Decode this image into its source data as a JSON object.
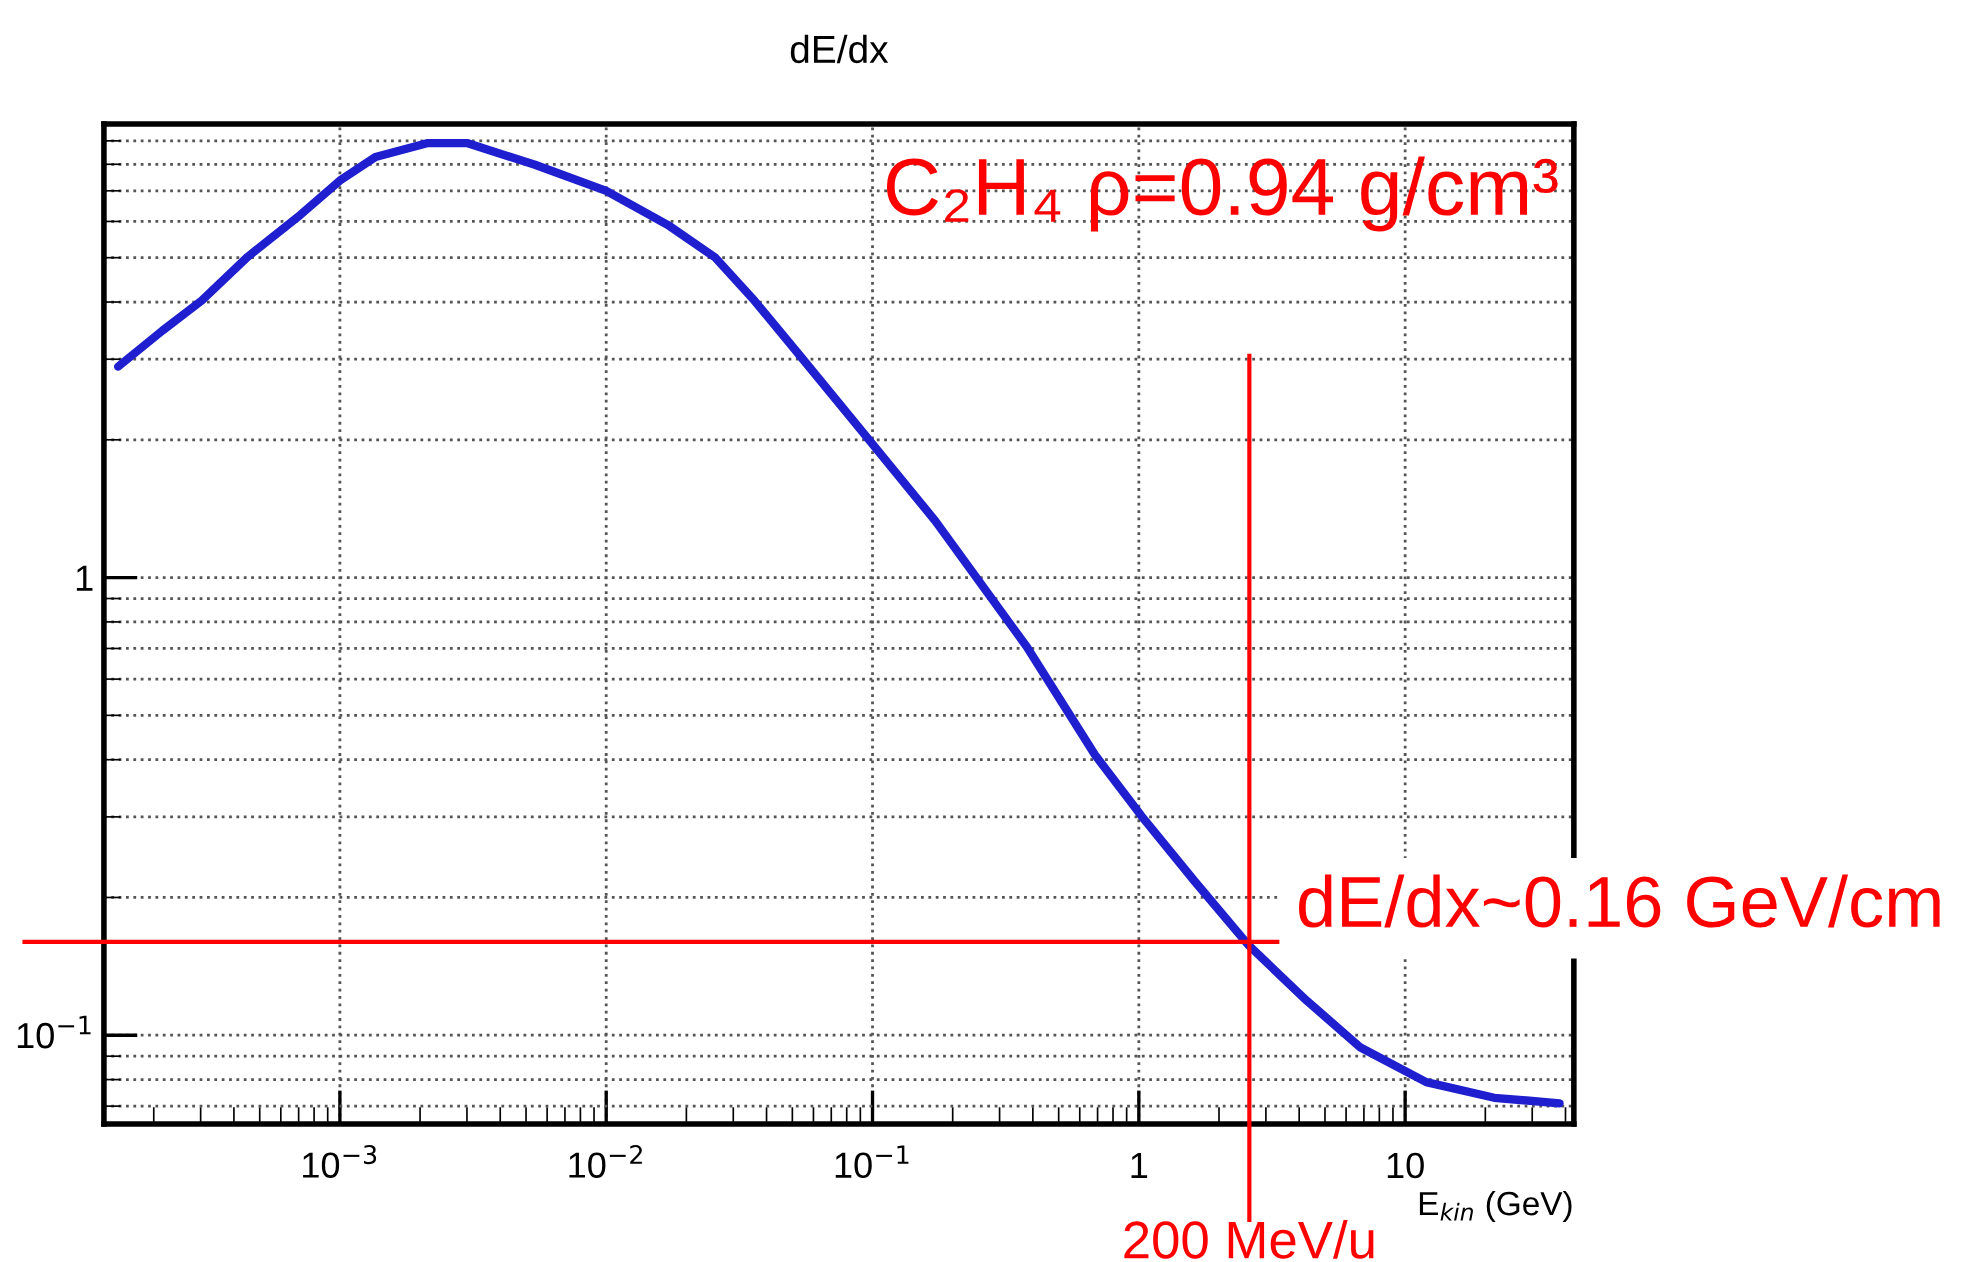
{
  "chart_data": {
    "type": "line",
    "title": "dE/dx",
    "xlabel": "E$_{kin}$ (GeV)",
    "x": [
      0.000147,
      0.000215,
      0.000303,
      0.00045,
      0.00071,
      0.001,
      0.00136,
      0.00214,
      0.003,
      0.0054,
      0.01,
      0.017,
      0.0257,
      0.036,
      0.054,
      0.095,
      0.172,
      0.38,
      0.684,
      1.02,
      1.62,
      2.59,
      4.27,
      6.8,
      12,
      21.6,
      38
    ],
    "series": [
      {
        "color": "#1f1fd0",
        "values": [
          2.89,
          3.46,
          4.03,
          5.02,
          6.2,
          7.37,
          8.3,
          8.9,
          8.9,
          7.98,
          7.0,
          5.9,
          5.0,
          4.03,
          3.03,
          2.03,
          1.33,
          0.705,
          0.41,
          0.302,
          0.217,
          0.157,
          0.119,
          0.094,
          0.079,
          0.073,
          0.071
        ]
      }
    ],
    "log": "xy",
    "xlim": [
      0.00013,
      43
    ],
    "ylim": [
      0.064,
      9.8
    ],
    "xticks": [
      {
        "value": 0.001,
        "label": "10$^{−3}$"
      },
      {
        "value": 0.01,
        "label": "10$^{−2}$"
      },
      {
        "value": 0.1,
        "label": "10$^{−1}$"
      },
      1,
      10
    ],
    "yticks": [
      {
        "value": 0.1,
        "label": "10$^{−1}$"
      },
      1
    ],
    "grid": true,
    "marker": "none",
    "line_style": "solid",
    "ref_lines": [
      {
        "axis": "y",
        "value": 0.16,
        "label": "dE/dx~0.16 GeV/cm",
        "color": "#ff0000"
      },
      {
        "axis": "x",
        "value": 2.6,
        "label": "200 MeV/u",
        "color": "#ff0000"
      }
    ],
    "annotations": [
      "C₂H₄ ρ=0.94 g/cm³"
    ]
  }
}
